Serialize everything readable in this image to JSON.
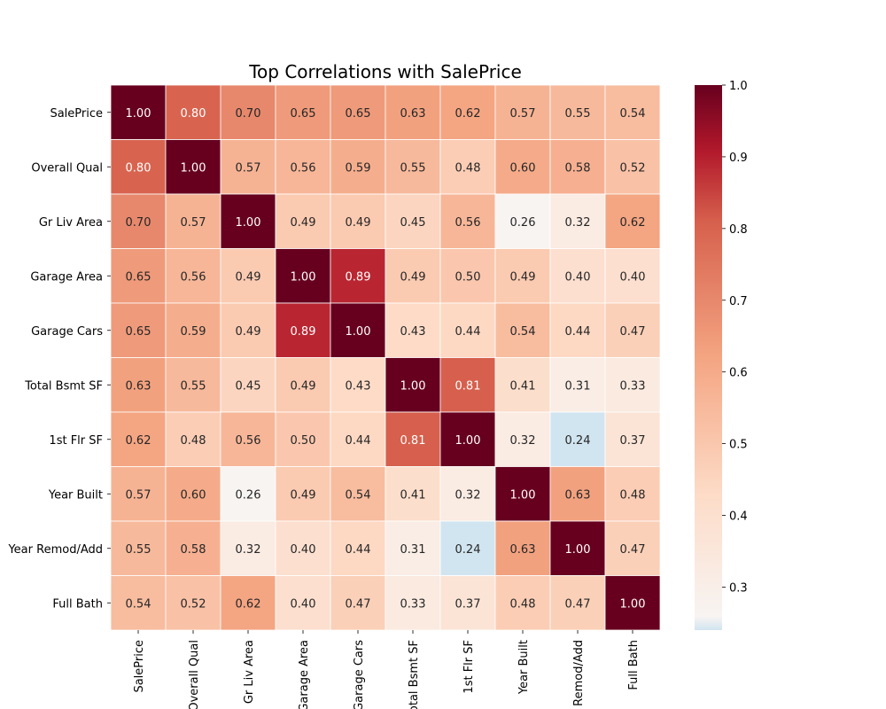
{
  "chart_data": {
    "type": "heatmap",
    "title": "Top Correlations with SalePrice",
    "row_labels": [
      "SalePrice",
      "Overall Qual",
      "Gr Liv Area",
      "Garage Area",
      "Garage Cars",
      "Total Bsmt SF",
      "1st Flr SF",
      "Year Built",
      "Year Remod/Add",
      "Full Bath"
    ],
    "col_labels": [
      "SalePrice",
      "Overall Qual",
      "Gr Liv Area",
      "Garage Area",
      "Garage Cars",
      "Total Bsmt SF",
      "1st Flr SF",
      "Year Built",
      "Year Remod/Add",
      "Full Bath"
    ],
    "values": [
      [
        1.0,
        0.8,
        0.7,
        0.65,
        0.65,
        0.63,
        0.62,
        0.57,
        0.55,
        0.54
      ],
      [
        0.8,
        1.0,
        0.57,
        0.56,
        0.59,
        0.55,
        0.48,
        0.6,
        0.58,
        0.52
      ],
      [
        0.7,
        0.57,
        1.0,
        0.49,
        0.49,
        0.45,
        0.56,
        0.26,
        0.32,
        0.62
      ],
      [
        0.65,
        0.56,
        0.49,
        1.0,
        0.89,
        0.49,
        0.5,
        0.49,
        0.4,
        0.4
      ],
      [
        0.65,
        0.59,
        0.49,
        0.89,
        1.0,
        0.43,
        0.44,
        0.54,
        0.44,
        0.47
      ],
      [
        0.63,
        0.55,
        0.45,
        0.49,
        0.43,
        1.0,
        0.81,
        0.41,
        0.31,
        0.33
      ],
      [
        0.62,
        0.48,
        0.56,
        0.5,
        0.44,
        0.81,
        1.0,
        0.32,
        0.24,
        0.37
      ],
      [
        0.57,
        0.6,
        0.26,
        0.49,
        0.54,
        0.41,
        0.32,
        1.0,
        0.63,
        0.48
      ],
      [
        0.55,
        0.58,
        0.32,
        0.4,
        0.44,
        0.31,
        0.24,
        0.63,
        1.0,
        0.47
      ],
      [
        0.54,
        0.52,
        0.62,
        0.4,
        0.47,
        0.33,
        0.37,
        0.48,
        0.47,
        1.0
      ]
    ],
    "value_format": "0.00",
    "colormap": "RdBu_r",
    "colorbar": {
      "vmin": 0.24,
      "vmax": 1.0,
      "ticks": [
        0.3,
        0.4,
        0.5,
        0.6,
        0.7,
        0.8,
        0.9,
        1.0
      ],
      "tick_labels": [
        "0.3",
        "0.4",
        "0.5",
        "0.6",
        "0.7",
        "0.8",
        "0.9",
        "1.0"
      ]
    },
    "cell_border_color": "#ffffff"
  }
}
